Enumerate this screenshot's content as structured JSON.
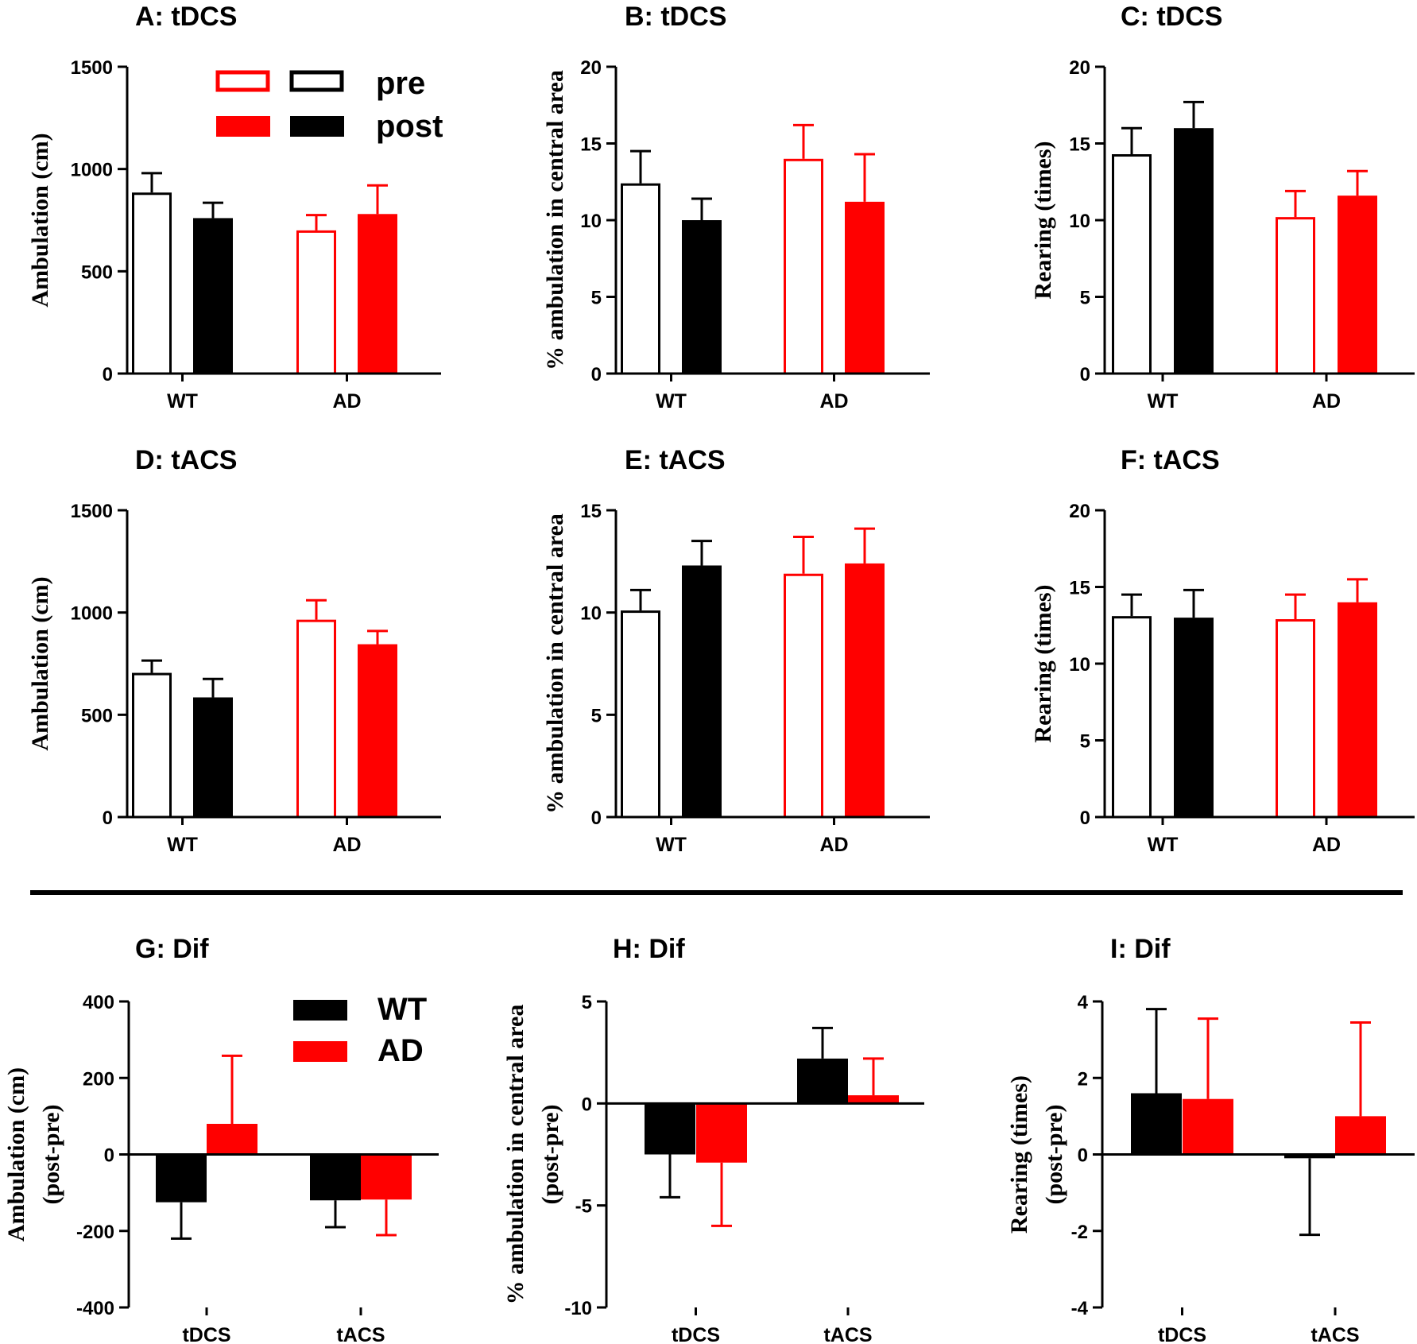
{
  "figure": {
    "colors": {
      "wt": "#000000",
      "ad": "#ff0000",
      "background": "#ffffff"
    },
    "legend_top": {
      "pre_label": "pre",
      "post_label": "post"
    },
    "legend_bottom": {
      "wt_label": "WT",
      "ad_label": "AD"
    }
  },
  "chart_data": [
    {
      "id": "A",
      "type": "bar",
      "title": "A: tDCS",
      "ylabel": "Ambulation (cm)",
      "ylim": [
        0,
        1500
      ],
      "yticks": [
        0,
        500,
        1000,
        1500
      ],
      "categories": [
        "WT",
        "AD"
      ],
      "series": [
        {
          "name": "pre",
          "fill": "open",
          "values": [
            885,
            700
          ],
          "errors": [
            95,
            75
          ]
        },
        {
          "name": "post",
          "fill": "solid",
          "values": [
            760,
            780
          ],
          "errors": [
            75,
            140
          ]
        }
      ]
    },
    {
      "id": "B",
      "type": "bar",
      "title": "B: tDCS",
      "ylabel": "% ambulation in central area",
      "ylim": [
        0,
        20
      ],
      "yticks": [
        0,
        5,
        10,
        15,
        20
      ],
      "categories": [
        "WT",
        "AD"
      ],
      "series": [
        {
          "name": "pre",
          "fill": "open",
          "values": [
            12.4,
            14.0
          ],
          "errors": [
            2.1,
            2.2
          ]
        },
        {
          "name": "post",
          "fill": "solid",
          "values": [
            10.0,
            11.2
          ],
          "errors": [
            1.4,
            3.1
          ]
        }
      ]
    },
    {
      "id": "C",
      "type": "bar",
      "title": "C: tDCS",
      "ylabel": "Rearing (times)",
      "ylim": [
        0,
        20
      ],
      "yticks": [
        0,
        5,
        10,
        15,
        20
      ],
      "categories": [
        "WT",
        "AD"
      ],
      "series": [
        {
          "name": "pre",
          "fill": "open",
          "values": [
            14.3,
            10.2
          ],
          "errors": [
            1.7,
            1.7
          ]
        },
        {
          "name": "post",
          "fill": "solid",
          "values": [
            16.0,
            11.6
          ],
          "errors": [
            1.7,
            1.6
          ]
        }
      ]
    },
    {
      "id": "D",
      "type": "bar",
      "title": "D: tACS",
      "ylabel": "Ambulation (cm)",
      "ylim": [
        0,
        1500
      ],
      "yticks": [
        0,
        500,
        1000,
        1500
      ],
      "categories": [
        "WT",
        "AD"
      ],
      "series": [
        {
          "name": "pre",
          "fill": "open",
          "values": [
            705,
            965
          ],
          "errors": [
            60,
            95
          ]
        },
        {
          "name": "post",
          "fill": "solid",
          "values": [
            585,
            845
          ],
          "errors": [
            90,
            65
          ]
        }
      ]
    },
    {
      "id": "E",
      "type": "bar",
      "title": "E: tACS",
      "ylabel": "% ambulation in central area",
      "ylim": [
        0,
        15
      ],
      "yticks": [
        0,
        5,
        10,
        15
      ],
      "categories": [
        "WT",
        "AD"
      ],
      "series": [
        {
          "name": "pre",
          "fill": "open",
          "values": [
            10.1,
            11.9
          ],
          "errors": [
            1.0,
            1.8
          ]
        },
        {
          "name": "post",
          "fill": "solid",
          "values": [
            12.3,
            12.4
          ],
          "errors": [
            1.2,
            1.7
          ]
        }
      ]
    },
    {
      "id": "F",
      "type": "bar",
      "title": "F: tACS",
      "ylabel": "Rearing (times)",
      "ylim": [
        0,
        20
      ],
      "yticks": [
        0,
        5,
        10,
        15,
        20
      ],
      "categories": [
        "WT",
        "AD"
      ],
      "series": [
        {
          "name": "pre",
          "fill": "open",
          "values": [
            13.1,
            12.9
          ],
          "errors": [
            1.4,
            1.6
          ]
        },
        {
          "name": "post",
          "fill": "solid",
          "values": [
            13.0,
            14.0
          ],
          "errors": [
            1.8,
            1.5
          ]
        }
      ]
    },
    {
      "id": "G",
      "type": "bar",
      "title": "G: Dif",
      "ylabel": [
        "Ambulation (cm)",
        "(post-pre)"
      ],
      "ylim": [
        -400,
        400
      ],
      "yticks": [
        -400,
        -200,
        0,
        200,
        400
      ],
      "categories": [
        "tDCS",
        "tACS"
      ],
      "series": [
        {
          "name": "WT",
          "values": [
            -125,
            -120
          ],
          "errors": [
            95,
            70
          ]
        },
        {
          "name": "AD",
          "values": [
            80,
            -118
          ],
          "errors": [
            178,
            93
          ]
        }
      ]
    },
    {
      "id": "H",
      "type": "bar",
      "title": "H: Dif",
      "ylabel": [
        "% ambulation in central area",
        "(post-pre)"
      ],
      "ylim": [
        -10,
        5
      ],
      "yticks": [
        -10,
        -5,
        0,
        5
      ],
      "categories": [
        "tDCS",
        "tACS"
      ],
      "series": [
        {
          "name": "WT",
          "values": [
            -2.5,
            2.2
          ],
          "errors": [
            2.1,
            1.5
          ]
        },
        {
          "name": "AD",
          "values": [
            -2.9,
            0.4
          ],
          "errors": [
            3.1,
            1.8
          ]
        }
      ]
    },
    {
      "id": "I",
      "type": "bar",
      "title": "I: Dif",
      "ylabel": [
        "Rearing (times)",
        "(post-pre)"
      ],
      "ylim": [
        -4,
        4
      ],
      "yticks": [
        -4,
        -2,
        0,
        2,
        4
      ],
      "categories": [
        "tDCS",
        "tACS"
      ],
      "series": [
        {
          "name": "WT",
          "values": [
            1.6,
            -0.1
          ],
          "errors": [
            2.2,
            2.0
          ]
        },
        {
          "name": "AD",
          "values": [
            1.45,
            1.0
          ],
          "errors": [
            2.1,
            2.45
          ]
        }
      ]
    }
  ]
}
